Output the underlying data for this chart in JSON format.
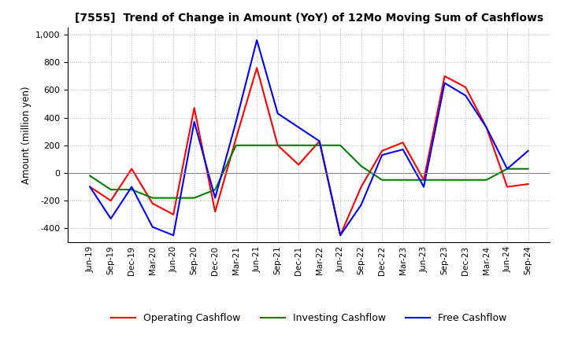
{
  "title": "[7555]  Trend of Change in Amount (YoY) of 12Mo Moving Sum of Cashflows",
  "ylabel": "Amount (million yen)",
  "ylim": [
    -500,
    1050
  ],
  "yticks": [
    -400,
    -200,
    0,
    200,
    400,
    600,
    800,
    1000
  ],
  "background_color": "#ffffff",
  "grid_color": "#b0b0b0",
  "labels": [
    "Jun-19",
    "Sep-19",
    "Dec-19",
    "Mar-20",
    "Jun-20",
    "Sep-20",
    "Dec-20",
    "Mar-21",
    "Jun-21",
    "Sep-21",
    "Dec-21",
    "Mar-22",
    "Jun-22",
    "Sep-22",
    "Dec-22",
    "Mar-23",
    "Jun-23",
    "Sep-23",
    "Dec-23",
    "Mar-24",
    "Jun-24",
    "Sep-24"
  ],
  "operating": [
    -100,
    -200,
    30,
    -220,
    -300,
    470,
    -280,
    250,
    760,
    200,
    60,
    230,
    -450,
    -100,
    160,
    220,
    -50,
    700,
    620,
    330,
    -100,
    -80
  ],
  "investing": [
    -20,
    -120,
    -120,
    -180,
    -180,
    -180,
    -120,
    200,
    200,
    200,
    200,
    200,
    200,
    50,
    -50,
    -50,
    -50,
    -50,
    -50,
    -50,
    30,
    30
  ],
  "free": [
    -100,
    -330,
    -100,
    -390,
    -450,
    370,
    -180,
    370,
    960,
    430,
    330,
    230,
    -450,
    -230,
    130,
    170,
    -100,
    650,
    560,
    330,
    30,
    160
  ],
  "operating_color": "#ff0000",
  "investing_color": "#008000",
  "free_color": "#0000ff",
  "line_width": 1.5
}
